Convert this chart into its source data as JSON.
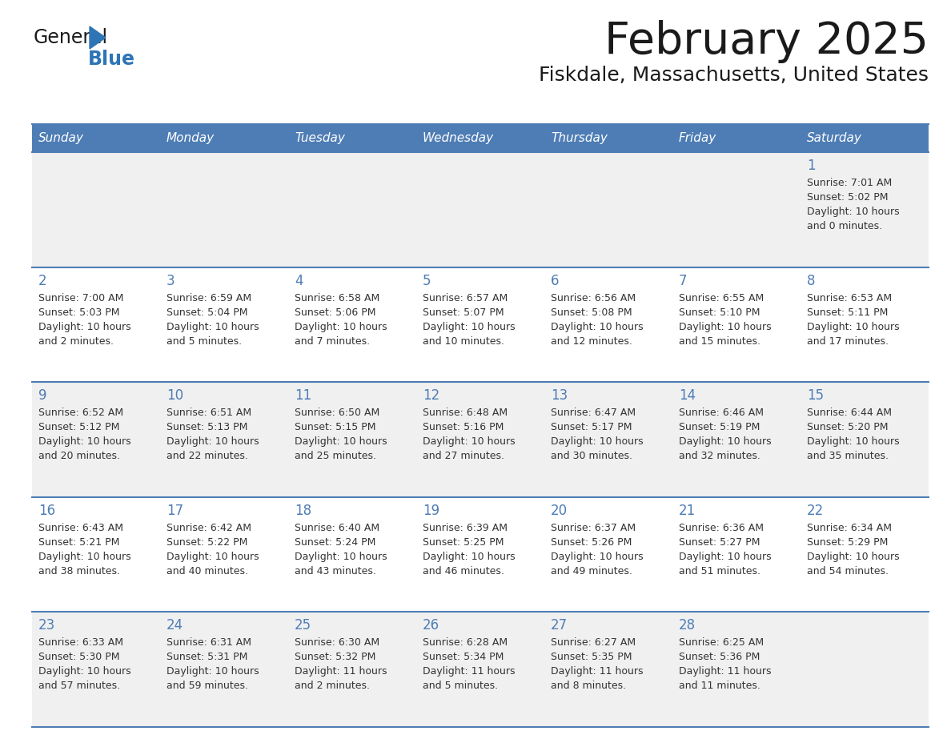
{
  "title": "February 2025",
  "subtitle": "Fiskdale, Massachusetts, United States",
  "days_of_week": [
    "Sunday",
    "Monday",
    "Tuesday",
    "Wednesday",
    "Thursday",
    "Friday",
    "Saturday"
  ],
  "header_bg": "#4E7DB5",
  "header_text": "#FFFFFF",
  "cell_bg_even": "#F0F0F0",
  "cell_bg_odd": "#FFFFFF",
  "cell_border": "#4E7DB5",
  "day_number_color": "#4E7DB5",
  "text_color": "#333333",
  "title_color": "#1a1a1a",
  "subtitle_color": "#1a1a1a",
  "logo_general_color": "#1a1a1a",
  "logo_blue_color": "#2E75B6",
  "calendar_data": [
    [
      null,
      null,
      null,
      null,
      null,
      null,
      {
        "day": "1",
        "sunrise": "7:01 AM",
        "sunset": "5:02 PM",
        "daylight_line1": "Daylight: 10 hours",
        "daylight_line2": "and 0 minutes."
      }
    ],
    [
      {
        "day": "2",
        "sunrise": "7:00 AM",
        "sunset": "5:03 PM",
        "daylight_line1": "Daylight: 10 hours",
        "daylight_line2": "and 2 minutes."
      },
      {
        "day": "3",
        "sunrise": "6:59 AM",
        "sunset": "5:04 PM",
        "daylight_line1": "Daylight: 10 hours",
        "daylight_line2": "and 5 minutes."
      },
      {
        "day": "4",
        "sunrise": "6:58 AM",
        "sunset": "5:06 PM",
        "daylight_line1": "Daylight: 10 hours",
        "daylight_line2": "and 7 minutes."
      },
      {
        "day": "5",
        "sunrise": "6:57 AM",
        "sunset": "5:07 PM",
        "daylight_line1": "Daylight: 10 hours",
        "daylight_line2": "and 10 minutes."
      },
      {
        "day": "6",
        "sunrise": "6:56 AM",
        "sunset": "5:08 PM",
        "daylight_line1": "Daylight: 10 hours",
        "daylight_line2": "and 12 minutes."
      },
      {
        "day": "7",
        "sunrise": "6:55 AM",
        "sunset": "5:10 PM",
        "daylight_line1": "Daylight: 10 hours",
        "daylight_line2": "and 15 minutes."
      },
      {
        "day": "8",
        "sunrise": "6:53 AM",
        "sunset": "5:11 PM",
        "daylight_line1": "Daylight: 10 hours",
        "daylight_line2": "and 17 minutes."
      }
    ],
    [
      {
        "day": "9",
        "sunrise": "6:52 AM",
        "sunset": "5:12 PM",
        "daylight_line1": "Daylight: 10 hours",
        "daylight_line2": "and 20 minutes."
      },
      {
        "day": "10",
        "sunrise": "6:51 AM",
        "sunset": "5:13 PM",
        "daylight_line1": "Daylight: 10 hours",
        "daylight_line2": "and 22 minutes."
      },
      {
        "day": "11",
        "sunrise": "6:50 AM",
        "sunset": "5:15 PM",
        "daylight_line1": "Daylight: 10 hours",
        "daylight_line2": "and 25 minutes."
      },
      {
        "day": "12",
        "sunrise": "6:48 AM",
        "sunset": "5:16 PM",
        "daylight_line1": "Daylight: 10 hours",
        "daylight_line2": "and 27 minutes."
      },
      {
        "day": "13",
        "sunrise": "6:47 AM",
        "sunset": "5:17 PM",
        "daylight_line1": "Daylight: 10 hours",
        "daylight_line2": "and 30 minutes."
      },
      {
        "day": "14",
        "sunrise": "6:46 AM",
        "sunset": "5:19 PM",
        "daylight_line1": "Daylight: 10 hours",
        "daylight_line2": "and 32 minutes."
      },
      {
        "day": "15",
        "sunrise": "6:44 AM",
        "sunset": "5:20 PM",
        "daylight_line1": "Daylight: 10 hours",
        "daylight_line2": "and 35 minutes."
      }
    ],
    [
      {
        "day": "16",
        "sunrise": "6:43 AM",
        "sunset": "5:21 PM",
        "daylight_line1": "Daylight: 10 hours",
        "daylight_line2": "and 38 minutes."
      },
      {
        "day": "17",
        "sunrise": "6:42 AM",
        "sunset": "5:22 PM",
        "daylight_line1": "Daylight: 10 hours",
        "daylight_line2": "and 40 minutes."
      },
      {
        "day": "18",
        "sunrise": "6:40 AM",
        "sunset": "5:24 PM",
        "daylight_line1": "Daylight: 10 hours",
        "daylight_line2": "and 43 minutes."
      },
      {
        "day": "19",
        "sunrise": "6:39 AM",
        "sunset": "5:25 PM",
        "daylight_line1": "Daylight: 10 hours",
        "daylight_line2": "and 46 minutes."
      },
      {
        "day": "20",
        "sunrise": "6:37 AM",
        "sunset": "5:26 PM",
        "daylight_line1": "Daylight: 10 hours",
        "daylight_line2": "and 49 minutes."
      },
      {
        "day": "21",
        "sunrise": "6:36 AM",
        "sunset": "5:27 PM",
        "daylight_line1": "Daylight: 10 hours",
        "daylight_line2": "and 51 minutes."
      },
      {
        "day": "22",
        "sunrise": "6:34 AM",
        "sunset": "5:29 PM",
        "daylight_line1": "Daylight: 10 hours",
        "daylight_line2": "and 54 minutes."
      }
    ],
    [
      {
        "day": "23",
        "sunrise": "6:33 AM",
        "sunset": "5:30 PM",
        "daylight_line1": "Daylight: 10 hours",
        "daylight_line2": "and 57 minutes."
      },
      {
        "day": "24",
        "sunrise": "6:31 AM",
        "sunset": "5:31 PM",
        "daylight_line1": "Daylight: 10 hours",
        "daylight_line2": "and 59 minutes."
      },
      {
        "day": "25",
        "sunrise": "6:30 AM",
        "sunset": "5:32 PM",
        "daylight_line1": "Daylight: 11 hours",
        "daylight_line2": "and 2 minutes."
      },
      {
        "day": "26",
        "sunrise": "6:28 AM",
        "sunset": "5:34 PM",
        "daylight_line1": "Daylight: 11 hours",
        "daylight_line2": "and 5 minutes."
      },
      {
        "day": "27",
        "sunrise": "6:27 AM",
        "sunset": "5:35 PM",
        "daylight_line1": "Daylight: 11 hours",
        "daylight_line2": "and 8 minutes."
      },
      {
        "day": "28",
        "sunrise": "6:25 AM",
        "sunset": "5:36 PM",
        "daylight_line1": "Daylight: 11 hours",
        "daylight_line2": "and 11 minutes."
      },
      null
    ]
  ]
}
